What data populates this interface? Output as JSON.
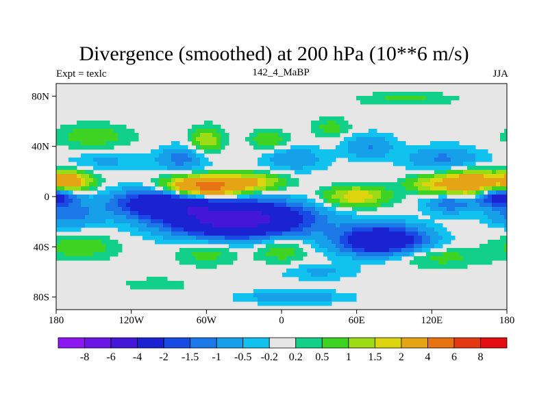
{
  "chart_data": {
    "type": "heatmap",
    "title": "Divergence (smoothed) at 200 hPa (10**6 m/s)",
    "subtitle_left": "Expt = texlc",
    "subtitle_center": "142_4_MaBP",
    "subtitle_right": "JJA",
    "x_ticks": [
      {
        "value": -180,
        "label": "180"
      },
      {
        "value": -120,
        "label": "120W"
      },
      {
        "value": -60,
        "label": "60W"
      },
      {
        "value": 0,
        "label": "0"
      },
      {
        "value": 60,
        "label": "60E"
      },
      {
        "value": 120,
        "label": "120E"
      },
      {
        "value": 180,
        "label": "180"
      }
    ],
    "y_ticks": [
      {
        "value": 80,
        "label": "80N"
      },
      {
        "value": 40,
        "label": "40N"
      },
      {
        "value": 0,
        "label": "0"
      },
      {
        "value": -40,
        "label": "40S"
      },
      {
        "value": -80,
        "label": "80S"
      }
    ],
    "xlim": [
      -180,
      180
    ],
    "ylim": [
      -90,
      90
    ],
    "colorbar": {
      "labels": [
        "-8",
        "-6",
        "-4",
        "-2",
        "-1.5",
        "-1",
        "-0.5",
        "-0.2",
        "0.2",
        "0.5",
        "1",
        "1.5",
        "2",
        "4",
        "6",
        "8"
      ],
      "colors": [
        "#8b18f0",
        "#6a16e4",
        "#4417d8",
        "#1a22d2",
        "#1a4ae4",
        "#1c78e6",
        "#16a0ea",
        "#12c2ee",
        "#e6e6e6",
        "#12d08a",
        "#3ed222",
        "#9cdc16",
        "#dcd40e",
        "#e4a416",
        "#e67212",
        "#e43812",
        "#e40e12"
      ]
    },
    "features": [
      {
        "lon": -35,
        "lat": -18,
        "value": -5,
        "rx": 55,
        "ry": 14
      },
      {
        "lon": -95,
        "lat": -5,
        "value": -3,
        "rx": 40,
        "ry": 11
      },
      {
        "lon": 80,
        "lat": -35,
        "value": -3.5,
        "rx": 35,
        "ry": 12
      },
      {
        "lon": 175,
        "lat": 0,
        "value": -3,
        "rx": 20,
        "ry": 8
      },
      {
        "lon": 135,
        "lat": -5,
        "value": -1.5,
        "rx": 20,
        "ry": 8
      },
      {
        "lon": -170,
        "lat": -15,
        "value": -1.2,
        "rx": 25,
        "ry": 10
      },
      {
        "lon": -60,
        "lat": 8,
        "value": 5,
        "rx": 30,
        "ry": 8
      },
      {
        "lon": -170,
        "lat": 12,
        "value": 3,
        "rx": 18,
        "ry": 8
      },
      {
        "lon": 150,
        "lat": 10,
        "value": 3.5,
        "rx": 25,
        "ry": 10
      },
      {
        "lon": 60,
        "lat": 0,
        "value": 2,
        "rx": 25,
        "ry": 8
      },
      {
        "lon": -20,
        "lat": 12,
        "value": 1.5,
        "rx": 25,
        "ry": 7
      },
      {
        "lon": 115,
        "lat": 10,
        "value": 1.2,
        "rx": 18,
        "ry": 7
      },
      {
        "lon": -60,
        "lat": 45,
        "value": 1.5,
        "rx": 12,
        "ry": 10
      },
      {
        "lon": -10,
        "lat": 45,
        "value": 0.9,
        "rx": 15,
        "ry": 8
      },
      {
        "lon": 40,
        "lat": 55,
        "value": 0.7,
        "rx": 15,
        "ry": 8
      },
      {
        "lon": -150,
        "lat": 48,
        "value": 0.8,
        "rx": 30,
        "ry": 10
      },
      {
        "lon": -80,
        "lat": 30,
        "value": -1.2,
        "rx": 20,
        "ry": 10
      },
      {
        "lon": 10,
        "lat": 30,
        "value": -0.9,
        "rx": 25,
        "ry": 10
      },
      {
        "lon": 70,
        "lat": 40,
        "value": -1.0,
        "rx": 20,
        "ry": 10
      },
      {
        "lon": 130,
        "lat": 30,
        "value": -1.1,
        "rx": 30,
        "ry": 10
      },
      {
        "lon": -140,
        "lat": 28,
        "value": -0.6,
        "rx": 30,
        "ry": 8
      },
      {
        "lon": 100,
        "lat": 78,
        "value": 0.6,
        "rx": 40,
        "ry": 5
      },
      {
        "lon": -160,
        "lat": -40,
        "value": 0.8,
        "rx": 30,
        "ry": 10
      },
      {
        "lon": -60,
        "lat": -45,
        "value": 0.7,
        "rx": 25,
        "ry": 10
      },
      {
        "lon": 0,
        "lat": -42,
        "value": 0.9,
        "rx": 20,
        "ry": 10
      },
      {
        "lon": 120,
        "lat": -48,
        "value": 0.8,
        "rx": 40,
        "ry": 8
      },
      {
        "lon": 10,
        "lat": -80,
        "value": -1.0,
        "rx": 40,
        "ry": 5
      },
      {
        "lon": -100,
        "lat": -70,
        "value": 0.5,
        "rx": 25,
        "ry": 5
      },
      {
        "lon": 30,
        "lat": -60,
        "value": -0.6,
        "rx": 30,
        "ry": 6
      }
    ]
  }
}
